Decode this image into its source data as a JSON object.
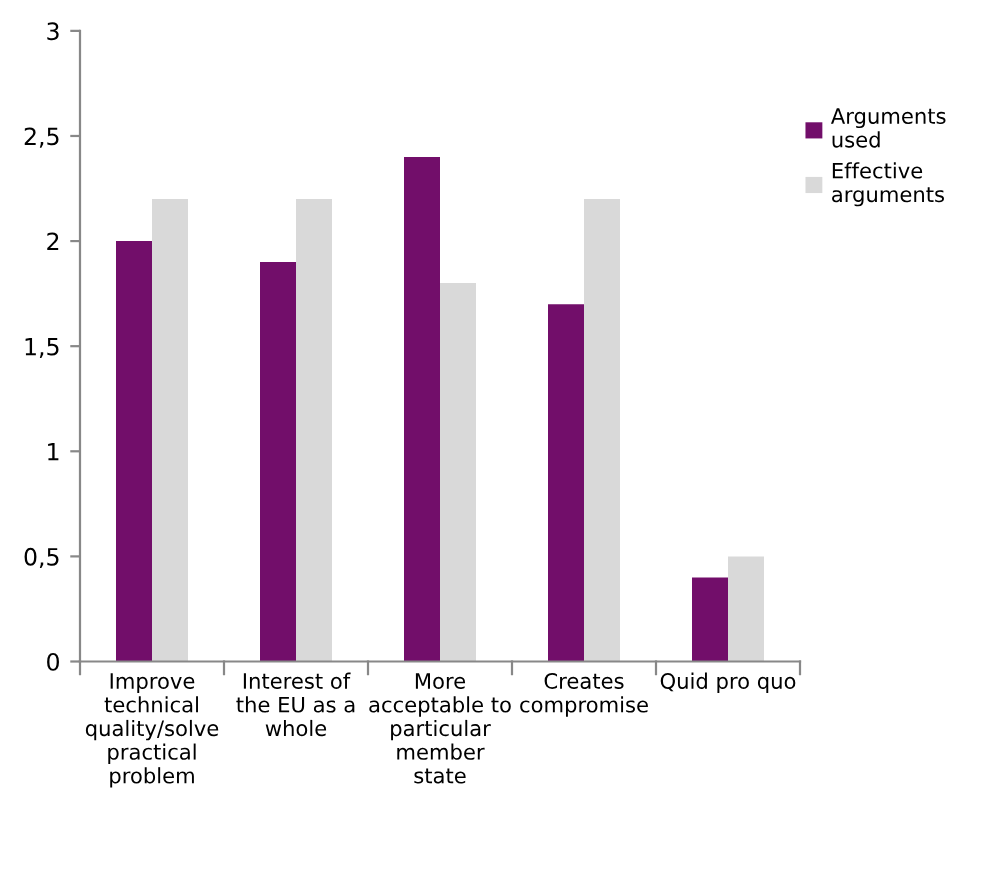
{
  "chart_data": {
    "type": "bar",
    "categories": [
      "Improve\ntechnical\nquality/solve\npractical\nproblem",
      "Interest of\nthe EU as a\nwhole",
      "More\nacceptable to\nparticular\nmember\nstate",
      "Creates\ncompromise",
      "Quid pro quo"
    ],
    "series": [
      {
        "name": "Arguments\nused",
        "color": "#720e6a",
        "values": [
          2.0,
          1.9,
          2.4,
          1.7,
          0.4
        ]
      },
      {
        "name": "Effective\narguments",
        "color": "#d9d9d9",
        "values": [
          2.2,
          2.2,
          1.8,
          2.2,
          0.5
        ]
      }
    ],
    "ylim": [
      0,
      3
    ],
    "yticks": [
      0,
      {
        "value": 0.5,
        "label": "0,5"
      },
      1,
      {
        "value": 1.5,
        "label": "1,5"
      },
      2,
      {
        "value": 2.5,
        "label": "2,5"
      },
      3
    ],
    "legend": "right"
  }
}
